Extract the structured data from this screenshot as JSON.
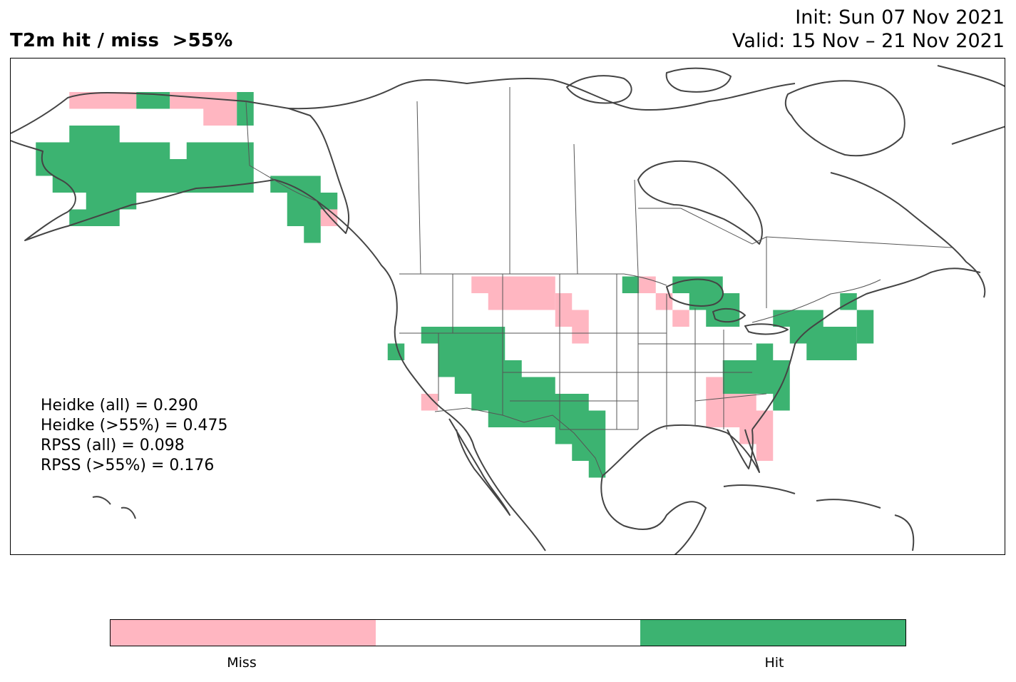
{
  "title": "T2m hit / miss  >55%",
  "init_line": "Init: Sun 07 Nov 2021",
  "valid_line": "Valid: 15 Nov – 21 Nov 2021",
  "scores": [
    "Heidke (all) = 0.290",
    "Heidke (>55%) = 0.475",
    "RPSS (all) = 0.098",
    "RPSS (>55%) = 0.176"
  ],
  "colors": {
    "miss": "#ffb6c1",
    "hit": "#3cb371",
    "neutral": "#ffffff",
    "coast": "#444444"
  },
  "colorbar": {
    "segments": [
      "miss",
      "neutral",
      "hit"
    ],
    "labels": [
      "Miss",
      "Hit"
    ]
  }
}
